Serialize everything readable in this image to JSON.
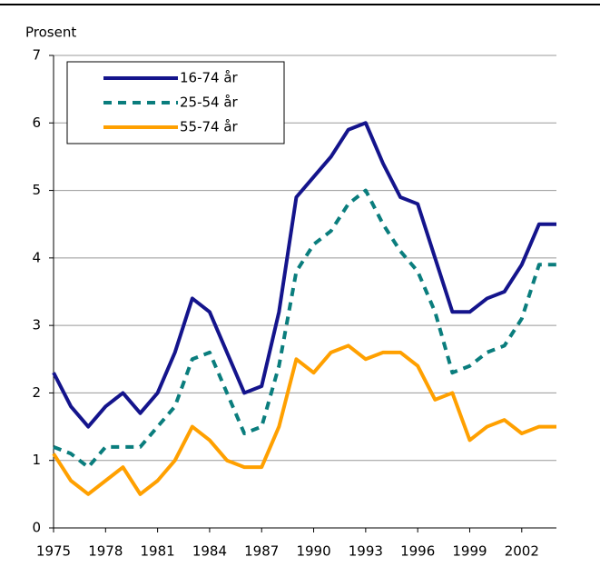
{
  "chart_data": {
    "type": "line",
    "y_label": "Prosent",
    "x": [
      1975,
      1976,
      1977,
      1978,
      1979,
      1980,
      1981,
      1982,
      1983,
      1984,
      1985,
      1986,
      1987,
      1988,
      1989,
      1990,
      1991,
      1992,
      1993,
      1994,
      1995,
      1996,
      1997,
      1998,
      1999,
      2000,
      2001,
      2002,
      2003,
      2004
    ],
    "series": [
      {
        "name": "16-74 år",
        "color": "#14148c",
        "dashed": false,
        "values": [
          2.3,
          1.8,
          1.5,
          1.8,
          2.0,
          1.7,
          2.0,
          2.6,
          3.4,
          3.2,
          2.6,
          2.0,
          2.1,
          3.2,
          4.9,
          5.2,
          5.5,
          5.9,
          6.0,
          5.4,
          4.9,
          4.8,
          4.0,
          3.2,
          3.2,
          3.4,
          3.5,
          3.9,
          4.5,
          4.5
        ]
      },
      {
        "name": "25-54 år",
        "color": "#0a7d7d",
        "dashed": true,
        "values": [
          1.2,
          1.1,
          0.9,
          1.2,
          1.2,
          1.2,
          1.5,
          1.8,
          2.5,
          2.6,
          2.0,
          1.4,
          1.5,
          2.4,
          3.8,
          4.2,
          4.4,
          4.8,
          5.0,
          4.5,
          4.1,
          3.8,
          3.2,
          2.3,
          2.4,
          2.6,
          2.7,
          3.1,
          3.9,
          3.9
        ]
      },
      {
        "name": "55-74 år",
        "color": "#ffa000",
        "dashed": false,
        "values": [
          1.1,
          0.7,
          0.5,
          0.7,
          0.9,
          0.5,
          0.7,
          1.0,
          1.5,
          1.3,
          1.0,
          0.9,
          0.9,
          1.5,
          2.5,
          2.3,
          2.6,
          2.7,
          2.5,
          2.6,
          2.6,
          2.4,
          1.9,
          2.0,
          1.3,
          1.5,
          1.6,
          1.4,
          1.5,
          1.5
        ]
      }
    ],
    "xlim": [
      1975,
      2004
    ],
    "xticks": [
      1975,
      1978,
      1981,
      1984,
      1987,
      1990,
      1993,
      1996,
      1999,
      2002
    ],
    "ylim": [
      0,
      7
    ],
    "yticks": [
      0,
      1,
      2,
      3,
      4,
      5,
      6,
      7
    ],
    "grid": true,
    "legend": "upper left"
  }
}
